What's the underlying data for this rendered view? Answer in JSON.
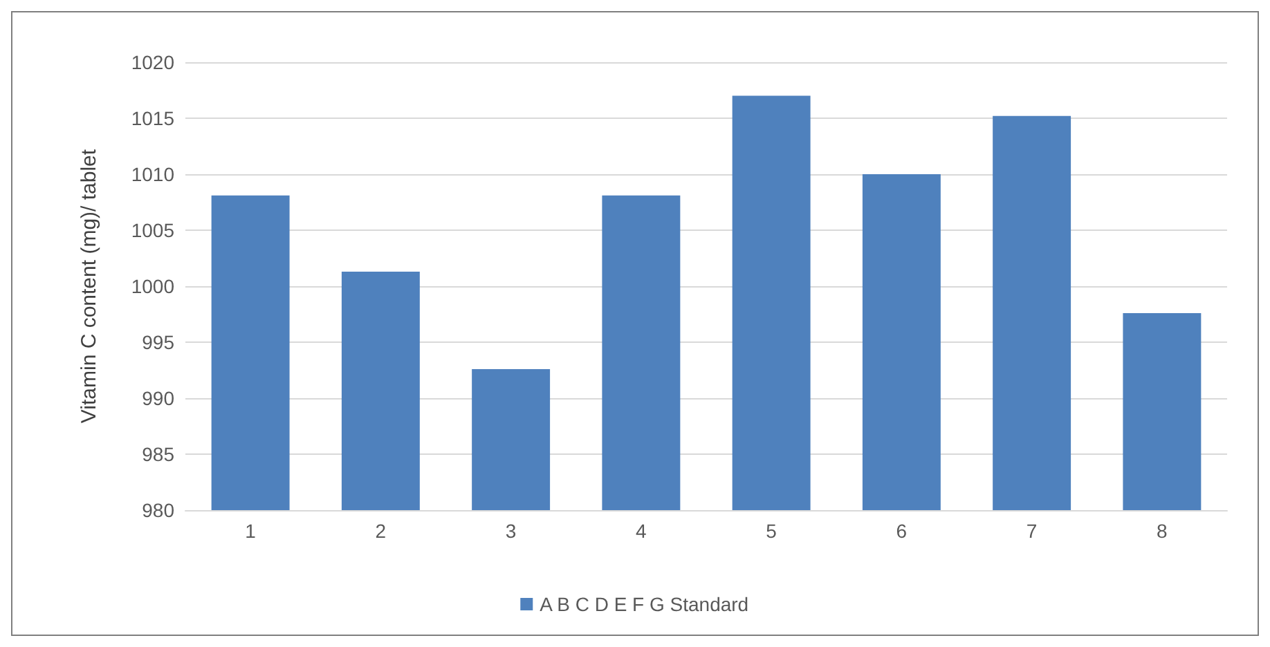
{
  "chart_data": {
    "type": "bar",
    "ylabel": "Vitamin C content (mg)/ tablet",
    "categories": [
      "1",
      "2",
      "3",
      "4",
      "5",
      "6",
      "7",
      "8"
    ],
    "series": [
      {
        "name": "A B C D E F G Standard",
        "color": "#4f81bd",
        "values": [
          1008.1,
          1001.3,
          992.6,
          1008.1,
          1017,
          1010,
          1015.2,
          997.6
        ]
      }
    ],
    "ylim": [
      980,
      1020
    ],
    "yticks": [
      980,
      985,
      990,
      995,
      1000,
      1005,
      1010,
      1015,
      1020
    ],
    "grid": "y",
    "legend": "bottom"
  }
}
